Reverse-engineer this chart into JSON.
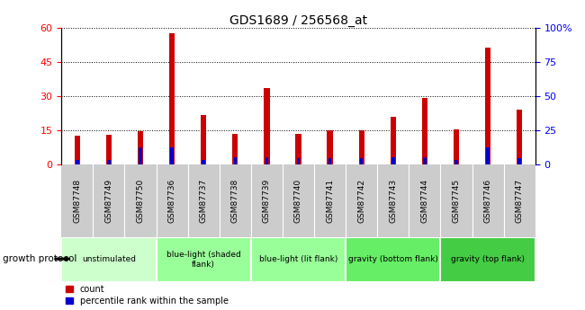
{
  "title": "GDS1689 / 256568_at",
  "samples": [
    "GSM87748",
    "GSM87749",
    "GSM87750",
    "GSM87736",
    "GSM87737",
    "GSM87738",
    "GSM87739",
    "GSM87740",
    "GSM87741",
    "GSM87742",
    "GSM87743",
    "GSM87744",
    "GSM87745",
    "GSM87746",
    "GSM87747"
  ],
  "counts": [
    12.5,
    12.8,
    14.5,
    57.5,
    21.5,
    13.5,
    33.5,
    13.5,
    15.0,
    15.0,
    21.0,
    29.0,
    15.5,
    51.5,
    24.0
  ],
  "percentiles": [
    3.5,
    3.5,
    12.5,
    12.5,
    3.5,
    5.5,
    5.5,
    4.5,
    4.5,
    4.5,
    5.5,
    5.5,
    3.5,
    12.5,
    4.5
  ],
  "ylim_left": [
    0,
    60
  ],
  "ylim_right": [
    0,
    100
  ],
  "yticks_left": [
    0,
    15,
    30,
    45,
    60
  ],
  "yticks_right": [
    0,
    25,
    50,
    75,
    100
  ],
  "ytick_labels_right": [
    "0",
    "25",
    "50",
    "75",
    "100%"
  ],
  "groups": [
    {
      "label": "unstimulated",
      "indices": [
        0,
        1,
        2
      ],
      "color": "#ccffcc"
    },
    {
      "label": "blue-light (shaded\nflank)",
      "indices": [
        3,
        4,
        5
      ],
      "color": "#99ff99"
    },
    {
      "label": "blue-light (lit flank)",
      "indices": [
        6,
        7,
        8
      ],
      "color": "#99ff99"
    },
    {
      "label": "gravity (bottom flank)",
      "indices": [
        9,
        10,
        11
      ],
      "color": "#66ee66"
    },
    {
      "label": "gravity (top flank)",
      "indices": [
        12,
        13,
        14
      ],
      "color": "#44cc44"
    }
  ],
  "bar_color": "#cc0000",
  "pct_color": "#0000cc",
  "xtick_bg": "#cccccc",
  "growth_protocol_label": "growth protocol",
  "legend_items": [
    "count",
    "percentile rank within the sample"
  ],
  "bar_width": 0.18,
  "pct_bar_width": 0.1
}
